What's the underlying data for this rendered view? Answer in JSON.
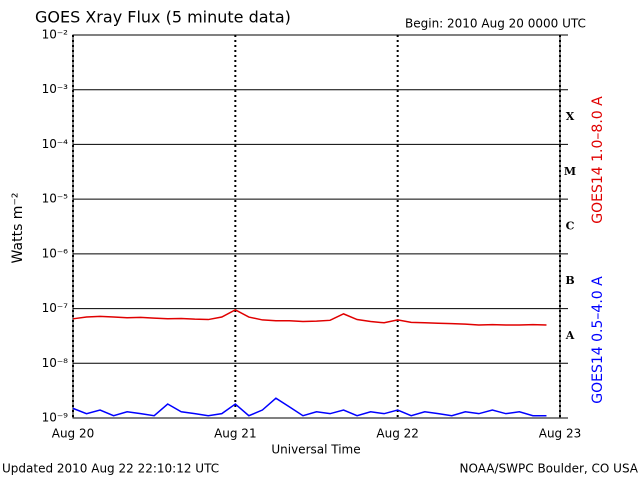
{
  "chart_data": {
    "type": "line",
    "title": "GOES Xray Flux (5 minute data)",
    "subtitle": "Begin:  2010 Aug 20 0000 UTC",
    "x_label": "Universal Time",
    "y_label": "Watts m⁻²",
    "footer_left": "Updated 2010 Aug 22 22:10:12 UTC",
    "footer_right": "NOAA/SWPC Boulder, CO USA",
    "log_scale": true,
    "grid": true,
    "xlim": [
      0,
      72
    ],
    "xticks": [
      {
        "value": 0,
        "label": "Aug 20"
      },
      {
        "value": 24,
        "label": "Aug 21"
      },
      {
        "value": 48,
        "label": "Aug 22"
      },
      {
        "value": 72,
        "label": "Aug 23"
      }
    ],
    "ylim": [
      1e-09,
      0.01
    ],
    "yticks": [
      {
        "value": 1e-09,
        "label": "10⁻⁹"
      },
      {
        "value": 1e-08,
        "label": "10⁻⁸"
      },
      {
        "value": 1e-07,
        "label": "10⁻⁷"
      },
      {
        "value": 1e-06,
        "label": "10⁻⁶"
      },
      {
        "value": 1e-05,
        "label": "10⁻⁵"
      },
      {
        "value": 0.0001,
        "label": "10⁻⁴"
      },
      {
        "value": 0.001,
        "label": "10⁻³"
      },
      {
        "value": 0.01,
        "label": "10⁻²"
      }
    ],
    "flare_classes": [
      "A",
      "B",
      "C",
      "M",
      "X"
    ],
    "x": [
      0,
      2,
      4,
      6,
      8,
      10,
      12,
      14,
      16,
      18,
      20,
      22,
      24,
      26,
      28,
      30,
      32,
      34,
      36,
      38,
      40,
      42,
      44,
      46,
      48,
      50,
      52,
      54,
      56,
      58,
      60,
      62,
      64,
      66,
      68,
      70
    ],
    "series": [
      {
        "name": "GOES14 1.0–8.0 A",
        "color": "#e00000",
        "values": [
          6.5e-08,
          7e-08,
          7.2e-08,
          7e-08,
          6.8e-08,
          6.9e-08,
          6.7e-08,
          6.5e-08,
          6.6e-08,
          6.4e-08,
          6.3e-08,
          7e-08,
          9.5e-08,
          7e-08,
          6.2e-08,
          6e-08,
          6e-08,
          5.8e-08,
          5.9e-08,
          6.1e-08,
          8e-08,
          6.3e-08,
          5.8e-08,
          5.5e-08,
          6.2e-08,
          5.6e-08,
          5.5e-08,
          5.4e-08,
          5.3e-08,
          5.2e-08,
          5e-08,
          5.1e-08,
          5e-08,
          5e-08,
          5.1e-08,
          5e-08
        ]
      },
      {
        "name": "GOES14 0.5–4.0 A",
        "color": "#0000ff",
        "values": [
          1.5e-09,
          1.2e-09,
          1.4e-09,
          1.1e-09,
          1.3e-09,
          1.2e-09,
          1.1e-09,
          1.8e-09,
          1.3e-09,
          1.2e-09,
          1.1e-09,
          1.2e-09,
          1.8e-09,
          1.1e-09,
          1.4e-09,
          2.3e-09,
          1.6e-09,
          1.1e-09,
          1.3e-09,
          1.2e-09,
          1.4e-09,
          1.1e-09,
          1.3e-09,
          1.2e-09,
          1.4e-09,
          1.1e-09,
          1.3e-09,
          1.2e-09,
          1.1e-09,
          1.3e-09,
          1.2e-09,
          1.4e-09,
          1.2e-09,
          1.3e-09,
          1.1e-09,
          1.1e-09
        ]
      }
    ]
  }
}
